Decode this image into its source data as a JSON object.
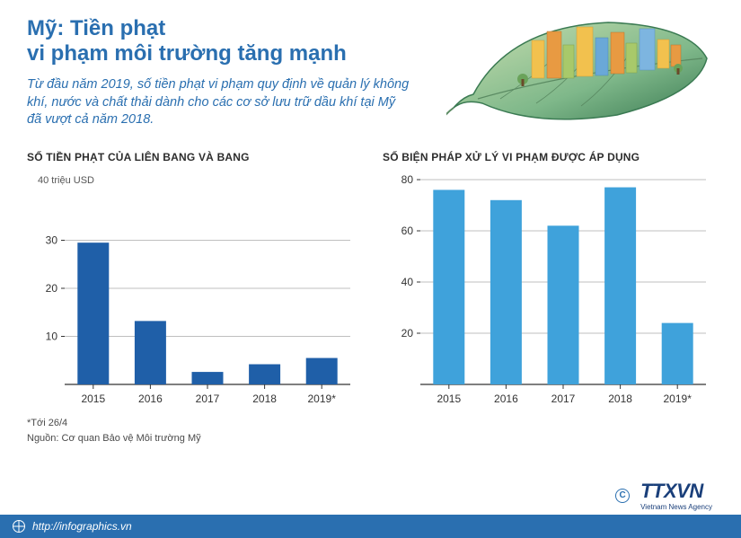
{
  "header": {
    "title_line1": "Mỹ: Tiền phạt",
    "title_line2": "vi phạm môi trường tăng mạnh",
    "subtitle": "Từ đầu năm 2019, số tiền phạt vi phạm quy định về quản lý không khí, nước và chất thải dành cho các cơ sở lưu trữ dầu khí tại Mỹ đã vượt cả năm 2018.",
    "title_color": "#2a6fb0"
  },
  "chart_left": {
    "type": "bar",
    "title": "SỐ TIỀN PHẠT CỦA LIÊN BANG VÀ BANG",
    "unit_label": "40 triệu USD",
    "label_fontsize": 12,
    "categories": [
      "2015",
      "2016",
      "2017",
      "2018",
      "2019*"
    ],
    "values": [
      29.5,
      13.2,
      2.6,
      4.2,
      5.5
    ],
    "bar_color": "#1f5fa8",
    "ylim": [
      0,
      40
    ],
    "ytick_labels": [
      "10",
      "20",
      "30"
    ],
    "ytick_values": [
      10,
      20,
      30
    ],
    "grid_color": "#bfbfbf",
    "axis_color": "#333333",
    "background_color": "#ffffff",
    "bar_width": 0.55,
    "tick_fontsize": 12,
    "tick_color": "#333333"
  },
  "chart_right": {
    "type": "bar",
    "title": "SỐ BIỆN PHÁP XỬ LÝ VI PHẠM ĐƯỢC ÁP DỤNG",
    "label_fontsize": 12,
    "categories": [
      "2015",
      "2016",
      "2017",
      "2018",
      "2019*"
    ],
    "values": [
      76,
      72,
      62,
      77,
      24
    ],
    "bar_color": "#3fa2db",
    "ylim": [
      0,
      80
    ],
    "ytick_labels": [
      "20",
      "40",
      "60",
      "80"
    ],
    "ytick_values": [
      20,
      40,
      60,
      80
    ],
    "grid_color": "#bfbfbf",
    "axis_color": "#333333",
    "background_color": "#ffffff",
    "bar_width": 0.55,
    "tick_fontsize": 12,
    "tick_color": "#333333"
  },
  "footnotes": {
    "note1": "*Tới 26/4",
    "note2": "Nguồn: Cơ quan Bảo vệ Môi trường Mỹ"
  },
  "footer": {
    "url": "http://infographics.vn",
    "bg_color": "#2a6fb0",
    "text_color": "#ffffff"
  },
  "logo": {
    "main": "TTXVN",
    "sub": "Vietnam News Agency",
    "color": "#1a3f7a"
  },
  "illustration": {
    "leaf_outline": "#3a7a52",
    "leaf_fill1": "#7fb88a",
    "leaf_fill2": "#c9dfb0",
    "building_colors": [
      "#f2c14e",
      "#e89a42",
      "#a8c96a",
      "#6aa8d8",
      "#7db5e0"
    ],
    "stem_color": "#5a8a62"
  }
}
